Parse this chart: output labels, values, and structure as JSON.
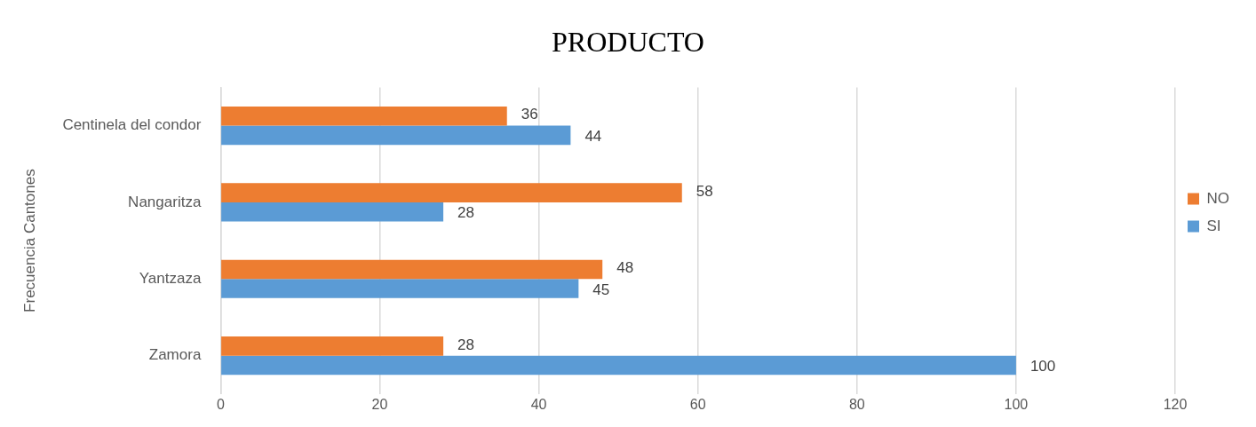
{
  "chart_data": {
    "type": "bar",
    "orientation": "horizontal",
    "title": "PRODUCTO",
    "ylabel": "Frecuencia Cantones",
    "categories": [
      "Centinela del condor",
      "Nangaritza",
      "Yantzaza",
      "Zamora"
    ],
    "series": [
      {
        "name": "NO",
        "color": "#ed7d31",
        "values": [
          36,
          58,
          48,
          28
        ]
      },
      {
        "name": "SI",
        "color": "#5b9bd5",
        "values": [
          44,
          28,
          45,
          100
        ]
      }
    ],
    "xlim": [
      0,
      120
    ],
    "xticks": [
      0,
      20,
      40,
      60,
      80,
      100,
      120
    ],
    "grid": "x",
    "legend": "right",
    "data_labels": true
  }
}
